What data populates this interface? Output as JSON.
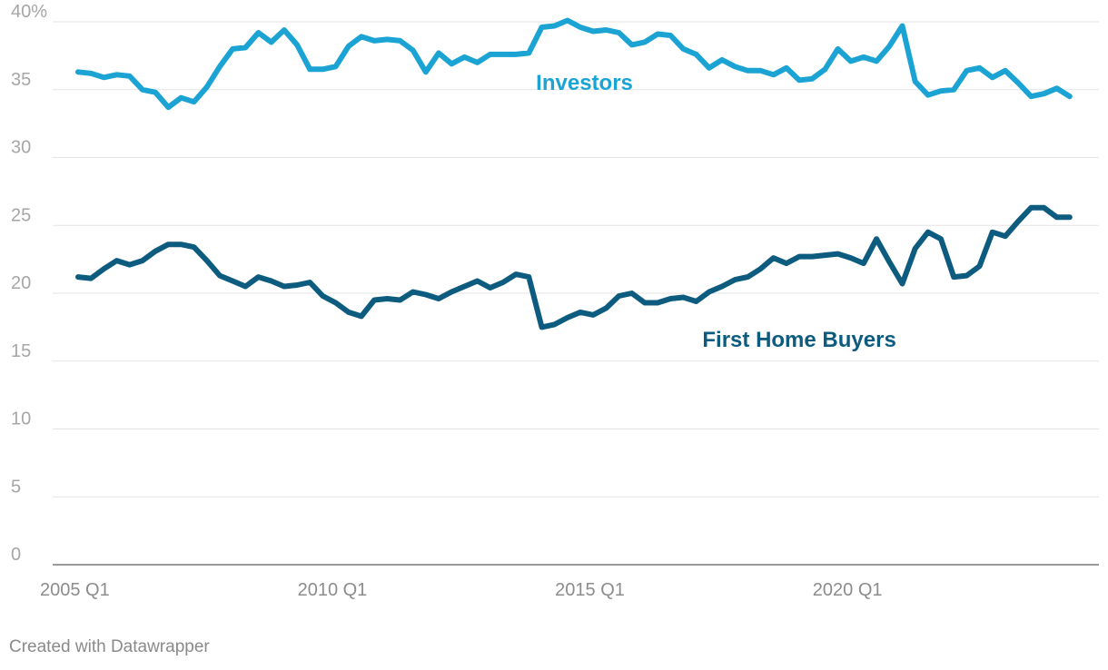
{
  "credit": "Created with Datawrapper",
  "chart_data": {
    "type": "line",
    "title": "",
    "xlabel": "",
    "ylabel": "",
    "ylim": [
      0,
      40
    ],
    "y_ticks": [
      0,
      5,
      10,
      15,
      20,
      25,
      30,
      35,
      40
    ],
    "y_tick_labels": [
      "0",
      "5",
      "10",
      "15",
      "20",
      "25",
      "30",
      "35",
      "40%"
    ],
    "x_start": 2005.0,
    "x_step": 0.25,
    "x_range": [
      2005.0,
      2024.5
    ],
    "x_tick_labels": [
      {
        "label": "2005 Q1",
        "x": 2005.0
      },
      {
        "label": "2010 Q1",
        "x": 2010.0
      },
      {
        "label": "2015 Q1",
        "x": 2015.0
      },
      {
        "label": "2020 Q1",
        "x": 2020.0
      }
    ],
    "grid": true,
    "series": [
      {
        "name": "Investors",
        "color": "#1ba4d3",
        "values": [
          36.3,
          36.2,
          35.9,
          36.1,
          36.0,
          35.0,
          34.8,
          33.7,
          34.4,
          34.1,
          35.2,
          36.7,
          38.0,
          38.1,
          39.2,
          38.5,
          39.4,
          38.3,
          36.5,
          36.5,
          36.7,
          38.2,
          38.9,
          38.6,
          38.7,
          38.6,
          37.9,
          36.3,
          37.7,
          36.9,
          37.4,
          37.0,
          37.6,
          37.6,
          37.6,
          37.7,
          39.6,
          39.7,
          40.1,
          39.6,
          39.3,
          39.4,
          39.2,
          38.3,
          38.5,
          39.1,
          39.0,
          38.0,
          37.6,
          36.6,
          37.2,
          36.7,
          36.4,
          36.4,
          36.1,
          36.6,
          35.7,
          35.8,
          36.5,
          38.0,
          37.1,
          37.4,
          37.1,
          38.2,
          39.7,
          35.6,
          34.6,
          34.9,
          35.0,
          36.4,
          36.6,
          35.9,
          36.4,
          35.5,
          34.5,
          34.7,
          35.1,
          34.5
        ]
      },
      {
        "name": "First Home Buyers",
        "color": "#0d5c80",
        "values": [
          21.2,
          21.1,
          21.8,
          22.4,
          22.1,
          22.4,
          23.1,
          23.6,
          23.6,
          23.4,
          22.4,
          21.3,
          20.9,
          20.5,
          21.2,
          20.9,
          20.5,
          20.6,
          20.8,
          19.8,
          19.3,
          18.6,
          18.3,
          19.5,
          19.6,
          19.5,
          20.1,
          19.9,
          19.6,
          20.1,
          20.5,
          20.9,
          20.4,
          20.8,
          21.4,
          21.2,
          17.5,
          17.7,
          18.2,
          18.6,
          18.4,
          18.9,
          19.8,
          20.0,
          19.3,
          19.3,
          19.6,
          19.7,
          19.4,
          20.1,
          20.5,
          21.0,
          21.2,
          21.8,
          22.6,
          22.2,
          22.7,
          22.7,
          22.8,
          22.9,
          22.6,
          22.2,
          24.0,
          22.3,
          20.7,
          23.3,
          24.5,
          24.0,
          21.2,
          21.3,
          22.0,
          24.5,
          24.2,
          25.3,
          26.3,
          26.3,
          25.6,
          25.6
        ]
      }
    ],
    "annotations": [
      {
        "text": "Investors",
        "series": 0,
        "anchor_x": 2015.0
      },
      {
        "text": "First Home Buyers",
        "series": 1,
        "anchor_x": 2019.2
      }
    ]
  }
}
